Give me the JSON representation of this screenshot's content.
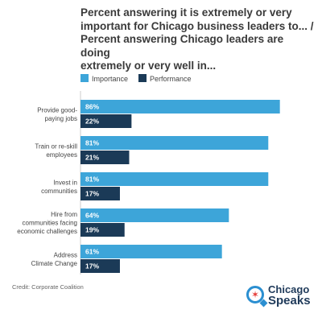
{
  "chart_data": {
    "type": "bar",
    "orientation": "horizontal",
    "title": "Percent answering it is extremely or very important for Chicago business leaders to... / Percent answering Chicago leaders are doing extremely or very well in...",
    "categories": [
      "Provide good-paying jobs",
      "Train or re-skill employees",
      "Invest in communities",
      "Hire from communities facing economic challenges",
      "Address Climate Change"
    ],
    "category_lines": [
      [
        "Provide good-",
        "paying jobs"
      ],
      [
        "Train or re-skill",
        "employees"
      ],
      [
        "Invest in",
        "communities"
      ],
      [
        "Hire from",
        "communities facing",
        "economic challenges"
      ],
      [
        "Address",
        "Climate Change"
      ]
    ],
    "series": [
      {
        "name": "Importance",
        "color": "#3da5d9",
        "values": [
          86,
          81,
          81,
          64,
          61
        ],
        "labels": [
          "86%",
          "81%",
          "81%",
          "64%",
          "61%"
        ]
      },
      {
        "name": "Performance",
        "color": "#1b3a57",
        "values": [
          22,
          21,
          17,
          19,
          17
        ],
        "labels": [
          "22%",
          "21%",
          "17%",
          "19%",
          "17%"
        ]
      }
    ],
    "xlim": [
      0,
      100
    ],
    "legend_position": "top-left",
    "grid": false
  },
  "title_text": "Percent answering it is extremely or very\nimportant for Chicago business leaders to... /\nPercent answering Chicago leaders are doing\nextremely or very well in...",
  "credit": "Credit: Corporate Coalition",
  "brand": {
    "line1": "Chicago",
    "line2": "Speaks",
    "icon": "chicago-speaks-logo-icon"
  }
}
